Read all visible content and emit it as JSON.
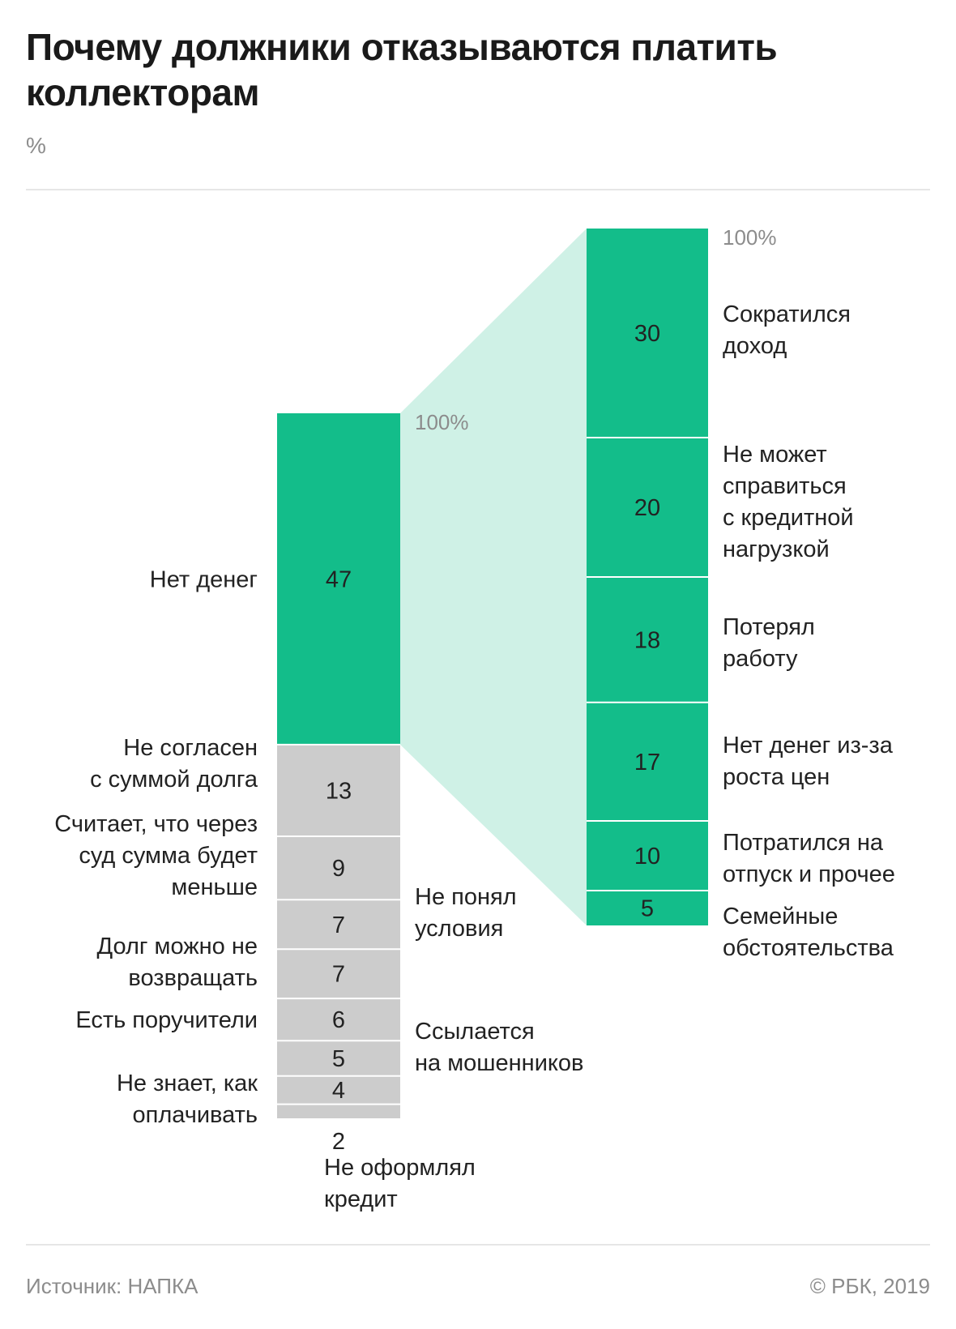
{
  "title": "Почему должники отказываются платить\nколлекторам",
  "unit": "%",
  "source": "Источник: НАПКА",
  "copyright": "© РБК, 2019",
  "colors": {
    "green": "#13bd8a",
    "grey": "#cccccc",
    "connector": "#cff1e6",
    "muted": "#8c8c8c",
    "text": "#222222"
  },
  "chart_data": [
    {
      "type": "bar",
      "stacked": true,
      "top_label": "100%",
      "categories": [
        "Нет денег",
        "Не согласен с суммой долга",
        "Считает, что через суд сумма будет меньше",
        "Не понял условия",
        "Долг можно не возвращать",
        "Есть поручители",
        "Ссылается на мошенников",
        "Не знает, как оплачивать",
        "Не оформлял кредит"
      ],
      "values": [
        47,
        13,
        9,
        7,
        7,
        6,
        5,
        4,
        2
      ]
    },
    {
      "type": "bar",
      "stacked": true,
      "top_label": "100%",
      "breakdown_of": "Нет денег",
      "categories": [
        "Сократился доход",
        "Не может справиться с кредитной нагрузкой",
        "Потерял работу",
        "Нет денег из-за роста цен",
        "Потратился на отпуск и прочее",
        "Семейные обстоятельства"
      ],
      "values": [
        30,
        20,
        18,
        17,
        10,
        5
      ]
    }
  ]
}
